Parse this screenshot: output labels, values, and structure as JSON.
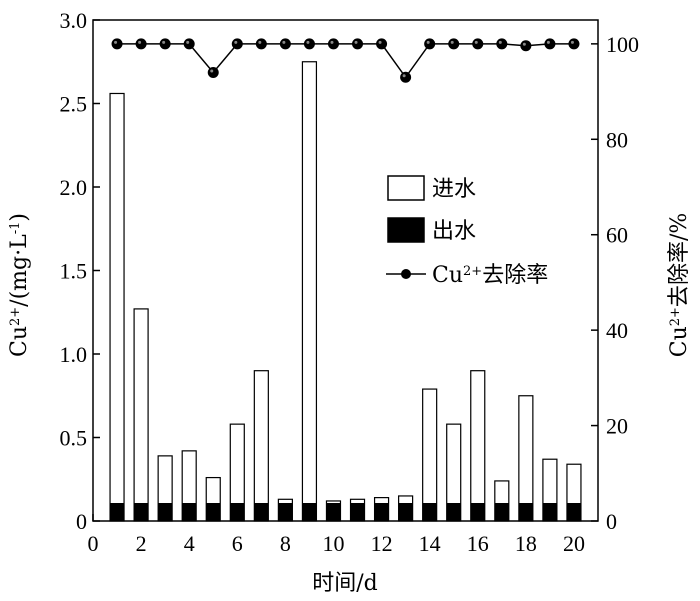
{
  "chart_data": {
    "type": "bar",
    "x": [
      1,
      2,
      3,
      4,
      5,
      6,
      7,
      8,
      9,
      10,
      11,
      12,
      13,
      14,
      15,
      16,
      17,
      18,
      19,
      20
    ],
    "series": [
      {
        "name": "进水",
        "type": "bar",
        "values": [
          2.56,
          1.27,
          0.39,
          0.42,
          0.26,
          0.58,
          0.9,
          0.13,
          2.75,
          0.12,
          0.13,
          0.14,
          0.15,
          0.79,
          0.58,
          0.9,
          0.24,
          0.75,
          0.37,
          0.34
        ]
      },
      {
        "name": "出水",
        "type": "bar",
        "values": [
          0.01,
          0.01,
          0.01,
          0.01,
          0.02,
          0.01,
          0.01,
          0.01,
          0.01,
          0.01,
          0.01,
          0.01,
          0.01,
          0.01,
          0.01,
          0.01,
          0.01,
          0.01,
          0.01,
          0.01
        ]
      },
      {
        "name_parts": [
          "Cu",
          "2+",
          "去除率"
        ],
        "type": "line",
        "axis": "right",
        "values": [
          100,
          100,
          100,
          100,
          94,
          100,
          100,
          100,
          100,
          100,
          100,
          100,
          93,
          100,
          100,
          100,
          100,
          99.6,
          100,
          100
        ]
      }
    ],
    "xlabel": "时间/d",
    "ylabel_left_parts": [
      "Cu",
      "2+",
      "/(mg·L",
      "-1",
      ")"
    ],
    "ylabel_right_parts": [
      "Cu",
      "2+",
      "去除率/%"
    ],
    "xlim": [
      0,
      21
    ],
    "ylim_left": [
      0,
      3.0
    ],
    "ylim_right": [
      0,
      105
    ],
    "x_ticks": [
      "0",
      "2",
      "4",
      "6",
      "8",
      "10",
      "12",
      "14",
      "16",
      "18",
      "20"
    ],
    "y_left_ticks": [
      "0",
      "0.5",
      "1.0",
      "1.5",
      "2.0",
      "2.5",
      "3.0"
    ],
    "y_right_ticks": [
      "0",
      "20",
      "40",
      "60",
      "80",
      "100"
    ],
    "legend_position": "center-right",
    "grid": false,
    "colors": {
      "inflow": "#ffffff",
      "outflow": "#000000",
      "removal": "#000000",
      "axis": "#000000"
    }
  }
}
